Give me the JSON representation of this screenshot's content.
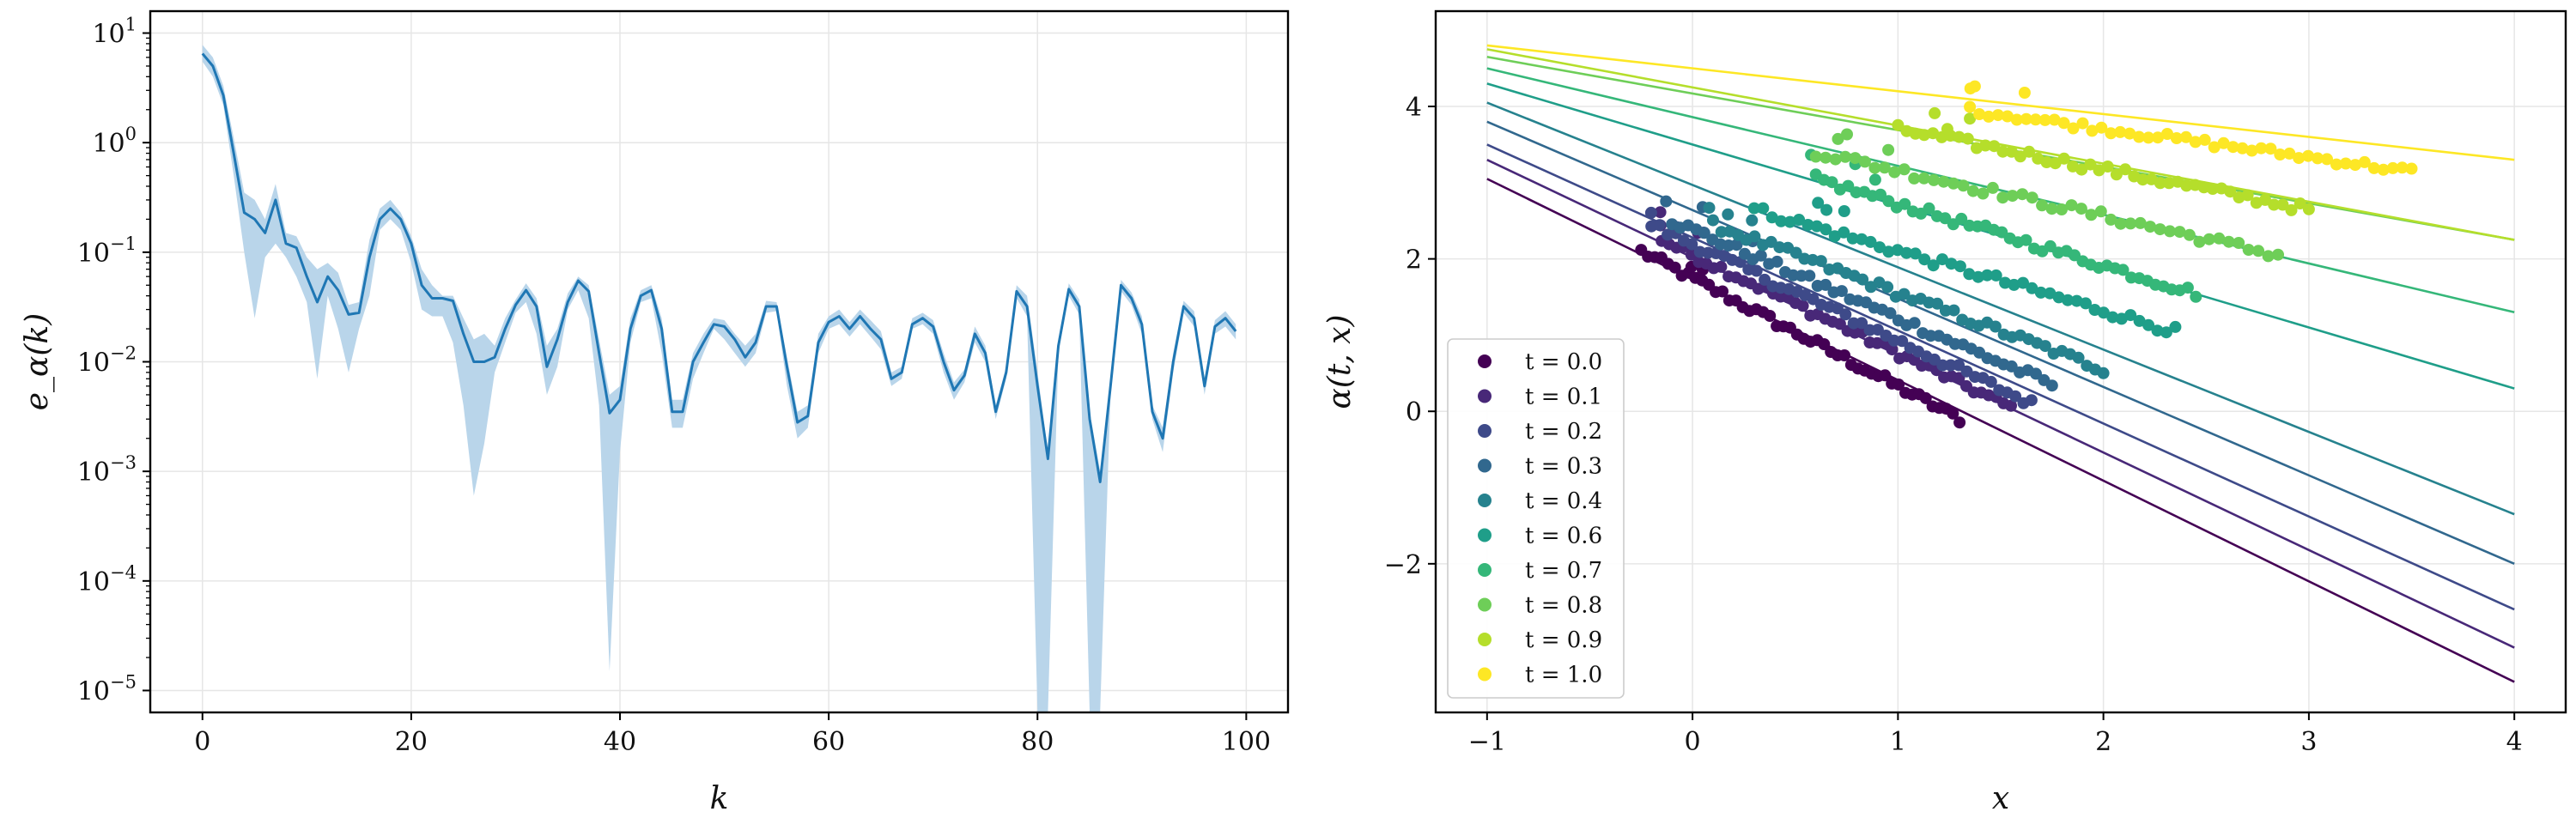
{
  "chart_data": [
    {
      "type": "line",
      "title": "",
      "xlabel": "k",
      "ylabel": "e_α(k)",
      "xlim": [
        -5,
        104
      ],
      "ylim_log10": [
        -5.2,
        1.2
      ],
      "yscale": "log",
      "grid": true,
      "x_ticks": [
        0,
        20,
        40,
        60,
        80,
        100
      ],
      "y_ticks": [
        {
          "exp": 1,
          "label": "10^1"
        },
        {
          "exp": 0,
          "label": "10^0"
        },
        {
          "exp": -1,
          "label": "10^-1"
        },
        {
          "exp": -2,
          "label": "10^-2"
        },
        {
          "exp": -3,
          "label": "10^-3"
        },
        {
          "exp": -4,
          "label": "10^-4"
        },
        {
          "exp": -5,
          "label": "10^-5"
        }
      ],
      "line_color": "#1f77b4",
      "band_color": "#b9d5ea",
      "series": [
        {
          "x": [
            0,
            1,
            2,
            3,
            4,
            5,
            6,
            7,
            8,
            9,
            10,
            11,
            12,
            13,
            14,
            15,
            16,
            17,
            18,
            19,
            20,
            21,
            22,
            23,
            24,
            25,
            26,
            27,
            28,
            29,
            30,
            31,
            32,
            33,
            34,
            35,
            36,
            37,
            38,
            39,
            40,
            41,
            42,
            43,
            44,
            45,
            46,
            47,
            48,
            49,
            50,
            51,
            52,
            53,
            54,
            55,
            56,
            57,
            58,
            59,
            60,
            61,
            62,
            63,
            64,
            65,
            66,
            67,
            68,
            69,
            70,
            71,
            72,
            73,
            74,
            75,
            76,
            77,
            78,
            79,
            80,
            81,
            82,
            83,
            84,
            85,
            86,
            87,
            88,
            89,
            90,
            91,
            92,
            93,
            94,
            95,
            96,
            97,
            98,
            99
          ],
          "y": [
            6.5,
            5.0,
            2.7,
            0.8,
            0.23,
            0.2,
            0.15,
            0.3,
            0.12,
            0.11,
            0.06,
            0.035,
            0.06,
            0.045,
            0.027,
            0.028,
            0.09,
            0.2,
            0.25,
            0.2,
            0.12,
            0.05,
            0.038,
            0.038,
            0.036,
            0.018,
            0.01,
            0.01,
            0.011,
            0.02,
            0.033,
            0.045,
            0.032,
            0.009,
            0.016,
            0.035,
            0.055,
            0.044,
            0.012,
            0.0034,
            0.0045,
            0.02,
            0.04,
            0.045,
            0.02,
            0.0035,
            0.0035,
            0.01,
            0.015,
            0.022,
            0.021,
            0.016,
            0.011,
            0.015,
            0.032,
            0.032,
            0.009,
            0.0028,
            0.0032,
            0.015,
            0.023,
            0.026,
            0.02,
            0.026,
            0.02,
            0.016,
            0.007,
            0.008,
            0.022,
            0.025,
            0.021,
            0.01,
            0.0055,
            0.0075,
            0.018,
            0.012,
            0.0035,
            0.008,
            0.044,
            0.032,
            0.006,
            0.0013,
            0.014,
            0.046,
            0.032,
            0.003,
            0.0008,
            0.006,
            0.05,
            0.038,
            0.022,
            0.0035,
            0.002,
            0.01,
            0.032,
            0.025,
            0.006,
            0.021,
            0.025,
            0.019
          ],
          "lower": [
            5.5,
            4.0,
            2.2,
            0.5,
            0.1,
            0.025,
            0.09,
            0.12,
            0.09,
            0.06,
            0.035,
            0.007,
            0.04,
            0.02,
            0.008,
            0.02,
            0.04,
            0.16,
            0.2,
            0.16,
            0.08,
            0.03,
            0.026,
            0.026,
            0.015,
            0.004,
            0.0006,
            0.0018,
            0.008,
            0.015,
            0.028,
            0.035,
            0.018,
            0.005,
            0.009,
            0.03,
            0.045,
            0.025,
            0.004,
            1.5e-05,
            0.0015,
            0.015,
            0.035,
            0.038,
            0.012,
            0.0025,
            0.0025,
            0.007,
            0.012,
            0.02,
            0.016,
            0.012,
            0.009,
            0.012,
            0.028,
            0.029,
            0.006,
            0.002,
            0.0025,
            0.012,
            0.02,
            0.022,
            0.017,
            0.022,
            0.017,
            0.013,
            0.006,
            0.007,
            0.02,
            0.022,
            0.018,
            0.008,
            0.0045,
            0.0065,
            0.015,
            0.01,
            0.003,
            0.007,
            0.038,
            0.026,
            1e-08,
            1e-08,
            0.012,
            0.04,
            0.027,
            1e-08,
            1e-08,
            0.005,
            0.044,
            0.033,
            0.018,
            0.003,
            0.0015,
            0.008,
            0.028,
            0.021,
            0.005,
            0.018,
            0.021,
            0.016
          ],
          "upper": [
            7.8,
            6.0,
            3.3,
            1.1,
            0.35,
            0.3,
            0.2,
            0.42,
            0.15,
            0.14,
            0.09,
            0.07,
            0.08,
            0.065,
            0.033,
            0.035,
            0.13,
            0.25,
            0.3,
            0.23,
            0.14,
            0.07,
            0.05,
            0.04,
            0.04,
            0.025,
            0.016,
            0.018,
            0.014,
            0.025,
            0.037,
            0.052,
            0.038,
            0.014,
            0.02,
            0.042,
            0.06,
            0.05,
            0.016,
            0.005,
            0.006,
            0.025,
            0.045,
            0.05,
            0.025,
            0.0045,
            0.0045,
            0.012,
            0.018,
            0.025,
            0.024,
            0.018,
            0.014,
            0.018,
            0.036,
            0.035,
            0.011,
            0.0035,
            0.004,
            0.018,
            0.026,
            0.03,
            0.023,
            0.03,
            0.024,
            0.019,
            0.008,
            0.009,
            0.025,
            0.028,
            0.024,
            0.012,
            0.0065,
            0.0085,
            0.021,
            0.014,
            0.004,
            0.009,
            0.05,
            0.04,
            0.008,
            0.0015,
            0.016,
            0.052,
            0.037,
            0.0035,
            0.001,
            0.007,
            0.056,
            0.043,
            0.026,
            0.004,
            0.0025,
            0.012,
            0.036,
            0.029,
            0.007,
            0.024,
            0.029,
            0.022
          ]
        }
      ]
    },
    {
      "type": "scatter",
      "title": "",
      "xlabel": "x",
      "ylabel": "α(t, x)",
      "xlim": [
        -1.25,
        4.25
      ],
      "ylim": [
        -3.95,
        5.25
      ],
      "grid": true,
      "x_ticks": [
        -1,
        0,
        1,
        2,
        3,
        4
      ],
      "y_ticks": [
        -2,
        0,
        2,
        4
      ],
      "legend_position": "lower-left",
      "series": [
        {
          "name": "t = 0.0",
          "color": "#440154",
          "line": {
            "y_at_-1": 3.05,
            "slope": -1.32
          },
          "dots": {
            "x_start": -0.25,
            "x_end": 1.3,
            "n": 48,
            "mean_y": [
              2.1,
              -0.1
            ],
            "spread": 0.06
          }
        },
        {
          "name": "t = 0.1",
          "color": "#482878",
          "line": {
            "y_at_-1": 3.3,
            "slope": -1.28
          },
          "dots": {
            "x_start": -0.15,
            "x_end": 1.55,
            "n": 48,
            "mean_y": [
              2.25,
              0.05
            ],
            "spread": 0.06
          }
        },
        {
          "name": "t = 0.2",
          "color": "#3e4a89",
          "line": {
            "y_at_-1": 3.5,
            "slope": -1.22
          },
          "dots": {
            "x_start": -0.2,
            "x_end": 1.65,
            "n": 48,
            "mean_y": [
              2.45,
              0.1
            ],
            "spread": 0.06
          }
        },
        {
          "name": "t = 0.3",
          "color": "#31688e",
          "line": {
            "y_at_-1": 3.8,
            "slope": -1.16
          },
          "dots": {
            "x_start": -0.1,
            "x_end": 1.75,
            "n": 48,
            "mean_y": [
              2.5,
              0.35
            ],
            "spread": 0.06
          }
        },
        {
          "name": "t = 0.4",
          "color": "#26828e",
          "line": {
            "y_at_-1": 4.05,
            "slope": -1.08
          },
          "dots": {
            "x_start": 0.1,
            "x_end": 2.0,
            "n": 48,
            "mean_y": [
              2.45,
              0.55
            ],
            "spread": 0.06
          }
        },
        {
          "name": "t = 0.6",
          "color": "#1f9e89",
          "line": {
            "y_at_-1": 4.3,
            "slope": -0.8
          },
          "dots": {
            "x_start": 0.3,
            "x_end": 2.35,
            "n": 48,
            "mean_y": [
              2.65,
              1.05
            ],
            "spread": 0.06
          }
        },
        {
          "name": "t = 0.7",
          "color": "#35b779",
          "line": {
            "y_at_-1": 4.5,
            "slope": -0.64
          },
          "dots": {
            "x_start": 0.6,
            "x_end": 2.45,
            "n": 48,
            "mean_y": [
              3.05,
              1.55
            ],
            "spread": 0.06
          }
        },
        {
          "name": "t = 0.8",
          "color": "#6ece58",
          "line": {
            "y_at_-1": 4.65,
            "slope": -0.48
          },
          "dots": {
            "x_start": 0.6,
            "x_end": 2.85,
            "n": 48,
            "mean_y": [
              3.4,
              2.05
            ],
            "spread": 0.06
          }
        },
        {
          "name": "t = 0.9",
          "color": "#b5de2b",
          "line": {
            "y_at_-1": 4.75,
            "slope": -0.5
          },
          "dots": {
            "x_start": 1.0,
            "x_end": 3.0,
            "n": 48,
            "mean_y": [
              3.7,
              2.65
            ],
            "spread": 0.06
          }
        },
        {
          "name": "t = 1.0",
          "color": "#fde725",
          "line": {
            "y_at_-1": 4.8,
            "slope": -0.3
          },
          "dots": {
            "x_start": 1.35,
            "x_end": 3.5,
            "n": 48,
            "mean_y": [
              3.95,
              3.15
            ],
            "spread": 0.05
          }
        }
      ]
    }
  ]
}
